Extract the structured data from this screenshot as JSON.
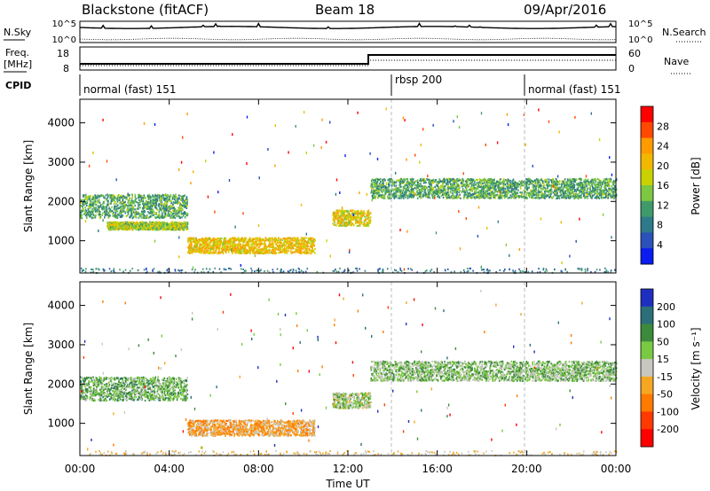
{
  "header": {
    "station": "Blackstone (fitACF)",
    "beam": "Beam 18",
    "date": "09/Apr/2016"
  },
  "noise_panel": {
    "left_label": "N.Sky",
    "right_label": "N.Search",
    "left_ticks": [
      "10^5",
      "10^0"
    ],
    "right_ticks": [
      "10^5",
      "10^0"
    ]
  },
  "freq_panel": {
    "left_label_line1": "Freq.",
    "left_label_line2": "[MHz]",
    "left_ticks": [
      "18",
      "8"
    ],
    "right_ticks": [
      "60",
      "0"
    ],
    "right_label": "Nave"
  },
  "cpid_panel": {
    "label": "CPID",
    "modes": [
      {
        "name": "normal (fast) 151",
        "start_hour": 0
      },
      {
        "name": "rbsp 200",
        "start_hour": 14
      },
      {
        "name": "normal (fast) 151",
        "start_hour": 20
      }
    ]
  },
  "chart_data": [
    {
      "type": "heatmap",
      "ylabel": "Slant Range [km]",
      "xlabel": "Time UT",
      "xlim": [
        0,
        24
      ],
      "ylim": [
        180,
        4600
      ],
      "yticks": [
        "1000",
        "2000",
        "3000",
        "4000"
      ],
      "xticks": [
        "00:00",
        "04:00",
        "08:00",
        "12:00",
        "16:00",
        "20:00",
        "00:00"
      ],
      "colorbar": {
        "label": "Power [dB]",
        "ticks": [
          "28",
          "24",
          "20",
          "16",
          "12",
          "8",
          "4"
        ],
        "colors": [
          "#ff0000",
          "#ff4800",
          "#ff9a00",
          "#f2b800",
          "#c9d200",
          "#7dc742",
          "#3f9a6a",
          "#2d7a8a",
          "#2a52b8",
          "#0a1cf0"
        ]
      },
      "features": [
        {
          "name": "band",
          "t0": 0.0,
          "t1": 4.8,
          "r0": 1600,
          "r1": 2200,
          "v": 0.3
        },
        {
          "name": "band",
          "t0": 1.2,
          "t1": 4.8,
          "r0": 1300,
          "r1": 1500,
          "v": 0.45
        },
        {
          "name": "band",
          "t0": 4.8,
          "t1": 10.5,
          "r0": 700,
          "r1": 1100,
          "v": 0.6
        },
        {
          "name": "band",
          "t0": 11.3,
          "t1": 13.0,
          "r0": 1400,
          "r1": 1800,
          "v": 0.55
        },
        {
          "name": "band",
          "t0": 13.0,
          "t1": 24.0,
          "r0": 2100,
          "r1": 2600,
          "v": 0.3
        }
      ]
    },
    {
      "type": "heatmap",
      "ylabel": "Slant Range [km]",
      "xlabel": "Time UT",
      "xlim": [
        0,
        24
      ],
      "ylim": [
        180,
        4600
      ],
      "yticks": [
        "1000",
        "2000",
        "3000",
        "4000"
      ],
      "xticks": [
        "00:00",
        "04:00",
        "08:00",
        "12:00",
        "16:00",
        "20:00",
        "00:00"
      ],
      "colorbar": {
        "label": "Velocity [m s⁻¹]",
        "ticks": [
          "200",
          "100",
          "50",
          "15",
          "-15",
          "-50",
          "-100",
          "-200"
        ],
        "colors": [
          "#1e2fbf",
          "#2a6f7a",
          "#3c8a3c",
          "#7ac943",
          "#c8c8c0",
          "#f5a623",
          "#ff7a00",
          "#ff3a00",
          "#ff0000"
        ]
      },
      "features": [
        {
          "name": "band",
          "t0": 0.0,
          "t1": 4.8,
          "r0": 1600,
          "r1": 2200,
          "v": 0.4
        },
        {
          "name": "band",
          "t0": 4.8,
          "t1": 10.5,
          "r0": 700,
          "r1": 1100,
          "v": 0.7
        },
        {
          "name": "band",
          "t0": 11.3,
          "t1": 13.0,
          "r0": 1400,
          "r1": 1800,
          "v": 0.5
        },
        {
          "name": "band",
          "t0": 13.0,
          "t1": 24.0,
          "r0": 2100,
          "r1": 2600,
          "v": 0.45
        }
      ]
    }
  ]
}
